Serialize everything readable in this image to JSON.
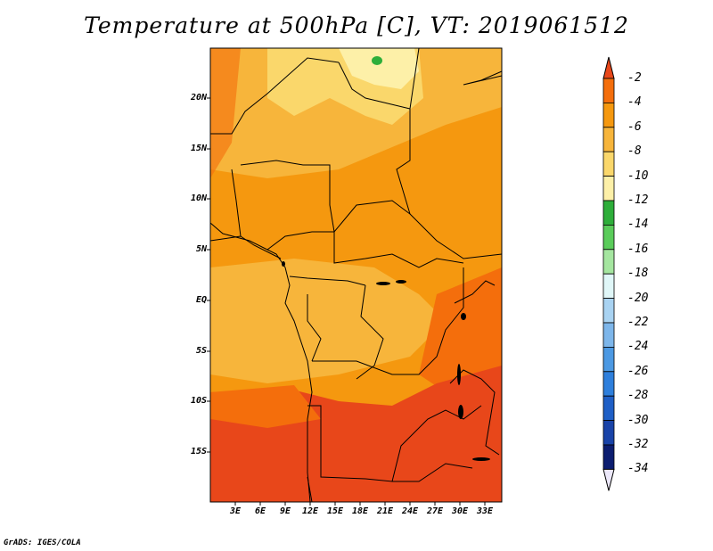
{
  "title": "Temperature at 500hPa [C], VT: 2019061512",
  "y_axis_labels": [
    "20N",
    "15N",
    "10N",
    "5N",
    "EQ",
    "5S",
    "10S",
    "15S"
  ],
  "x_axis_labels": [
    "3E",
    "6E",
    "9E",
    "12E",
    "15E",
    "18E",
    "21E",
    "24E",
    "27E",
    "30E",
    "33E"
  ],
  "colorbar": {
    "labels": [
      "-2",
      "-4",
      "-6",
      "-8",
      "-10",
      "-12",
      "-14",
      "-16",
      "-18",
      "-20",
      "-22",
      "-24",
      "-26",
      "-28",
      "-30",
      "-32",
      "-34"
    ],
    "colors": [
      "#e8471a",
      "#f46e0c",
      "#f5980f",
      "#f7b53b",
      "#fad76b",
      "#fdf0a8",
      "#2eae3a",
      "#5acc5a",
      "#a5e6a0",
      "#e0f7f8",
      "#a9d3f2",
      "#7db6ea",
      "#4c99e3",
      "#2e7fdc",
      "#1f5fc6",
      "#1943a8",
      "#0c1d70",
      "#ece8fa"
    ]
  },
  "footer": "GrADS: IGES/COLA",
  "map_colors": {
    "ocean_red": "#e8471a",
    "orange_mid": "#f5980f",
    "orange_light": "#f7b53b",
    "yellow": "#fad76b",
    "pale": "#fdf0a8",
    "green": "#2eae3a",
    "border": "#000000"
  }
}
